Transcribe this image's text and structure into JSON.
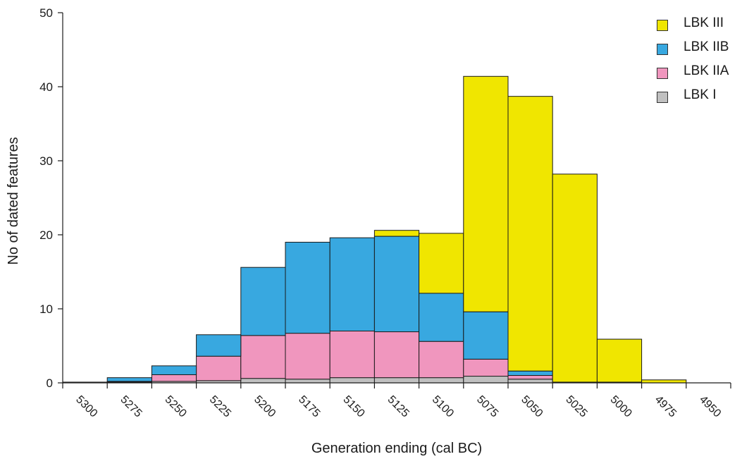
{
  "chart_data": {
    "type": "bar",
    "stacked": true,
    "xlabel": "Generation ending (cal BC)",
    "ylabel": "No of dated features",
    "ylim": [
      0,
      50
    ],
    "yticks": [
      0,
      10,
      20,
      30,
      40,
      50
    ],
    "x_bin_edges": [
      "5300",
      "5275",
      "5250",
      "5225",
      "5200",
      "5175",
      "5150",
      "5125",
      "5100",
      "5075",
      "5050",
      "5025",
      "5000",
      "4975",
      "4950",
      "4925"
    ],
    "legend_position": "top-right",
    "grid": false,
    "series": [
      {
        "name": "LBK I",
        "color": "#c0c0c0",
        "values": [
          0.1,
          0.1,
          0.2,
          0.3,
          0.6,
          0.5,
          0.7,
          0.7,
          0.7,
          0.9,
          0.5,
          0.1,
          0.1,
          0.0,
          0.0
        ]
      },
      {
        "name": "LBK IIA",
        "color": "#f096be",
        "values": [
          0.0,
          0.1,
          0.9,
          3.3,
          5.8,
          6.2,
          6.3,
          6.2,
          4.9,
          2.3,
          0.5,
          0.0,
          0.0,
          0.0,
          0.0
        ]
      },
      {
        "name": "LBK IIB",
        "color": "#38a8e0",
        "values": [
          0.0,
          0.5,
          1.2,
          2.9,
          9.2,
          12.3,
          12.6,
          12.9,
          6.5,
          6.4,
          0.6,
          0.0,
          0.0,
          0.0,
          0.0
        ]
      },
      {
        "name": "LBK III",
        "color": "#f0e600",
        "values": [
          0.0,
          0.0,
          0.0,
          0.0,
          0.0,
          0.0,
          0.0,
          0.8,
          8.1,
          31.8,
          37.1,
          28.1,
          5.8,
          0.4,
          0.0
        ]
      }
    ]
  },
  "legend_order": [
    "LBK III",
    "LBK IIB",
    "LBK IIA",
    "LBK I"
  ]
}
